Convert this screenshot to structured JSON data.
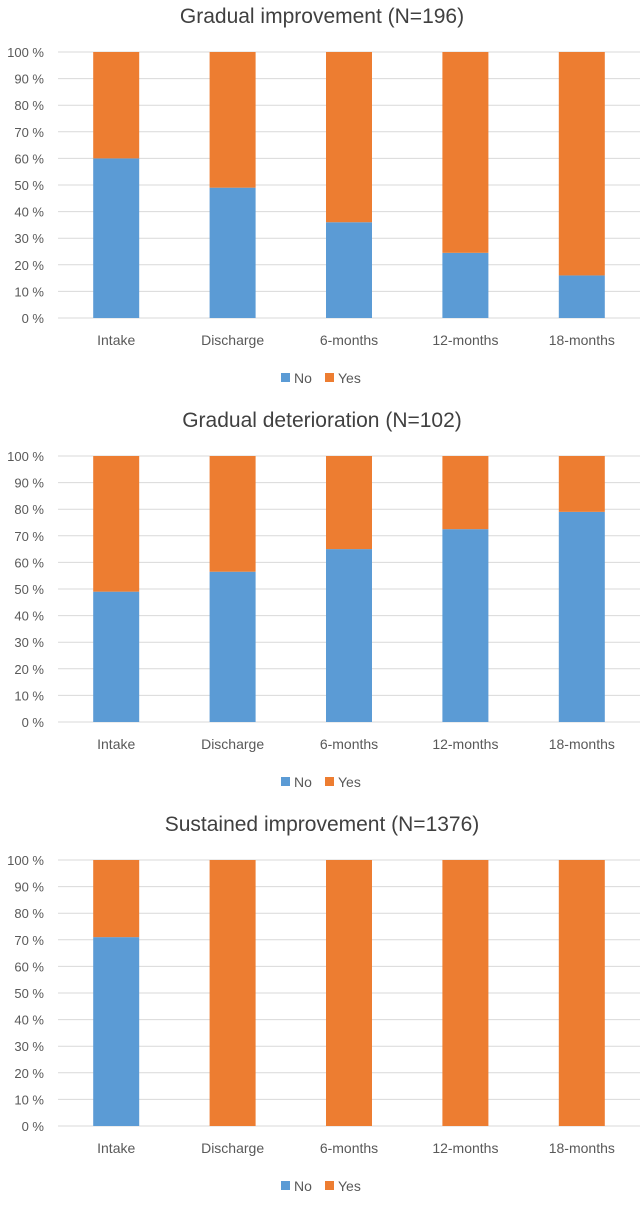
{
  "chart_data": [
    {
      "type": "bar",
      "stacked": "percent",
      "title": "Gradual improvement (N=196)",
      "categories": [
        "Intake",
        "Discharge",
        "6-months",
        "12-months",
        "18-months"
      ],
      "series": [
        {
          "name": "No",
          "color": "#5B9BD5",
          "values": [
            60,
            49,
            36,
            24.5,
            16
          ]
        },
        {
          "name": "Yes",
          "color": "#ED7D31",
          "values": [
            40,
            51,
            64,
            75.5,
            84
          ]
        }
      ],
      "ylim": [
        0,
        100
      ],
      "yticks": [
        "0 %",
        "10 %",
        "20 %",
        "30 %",
        "40 %",
        "50 %",
        "60 %",
        "70 %",
        "80 %",
        "90 %",
        "100 %"
      ],
      "legend": "bottom",
      "grid": true
    },
    {
      "type": "bar",
      "stacked": "percent",
      "title": "Gradual deterioration (N=102)",
      "categories": [
        "Intake",
        "Discharge",
        "6-months",
        "12-months",
        "18-months"
      ],
      "series": [
        {
          "name": "No",
          "color": "#5B9BD5",
          "values": [
            49,
            56.5,
            65,
            72.5,
            79
          ]
        },
        {
          "name": "Yes",
          "color": "#ED7D31",
          "values": [
            51,
            43.5,
            35,
            27.5,
            21
          ]
        }
      ],
      "ylim": [
        0,
        100
      ],
      "yticks": [
        "0 %",
        "10 %",
        "20 %",
        "30 %",
        "40 %",
        "50 %",
        "60 %",
        "70 %",
        "80 %",
        "90 %",
        "100 %"
      ],
      "legend": "bottom",
      "grid": true
    },
    {
      "type": "bar",
      "stacked": "percent",
      "title": "Sustained improvement (N=1376)",
      "categories": [
        "Intake",
        "Discharge",
        "6-months",
        "12-months",
        "18-months"
      ],
      "series": [
        {
          "name": "No",
          "color": "#5B9BD5",
          "values": [
            71,
            0,
            0,
            0,
            0
          ]
        },
        {
          "name": "Yes",
          "color": "#ED7D31",
          "values": [
            29,
            100,
            100,
            100,
            100
          ]
        }
      ],
      "ylim": [
        0,
        100
      ],
      "yticks": [
        "0 %",
        "10 %",
        "20 %",
        "30 %",
        "40 %",
        "50 %",
        "60 %",
        "70 %",
        "80 %",
        "90 %",
        "100 %"
      ],
      "legend": "bottom",
      "grid": true
    }
  ]
}
